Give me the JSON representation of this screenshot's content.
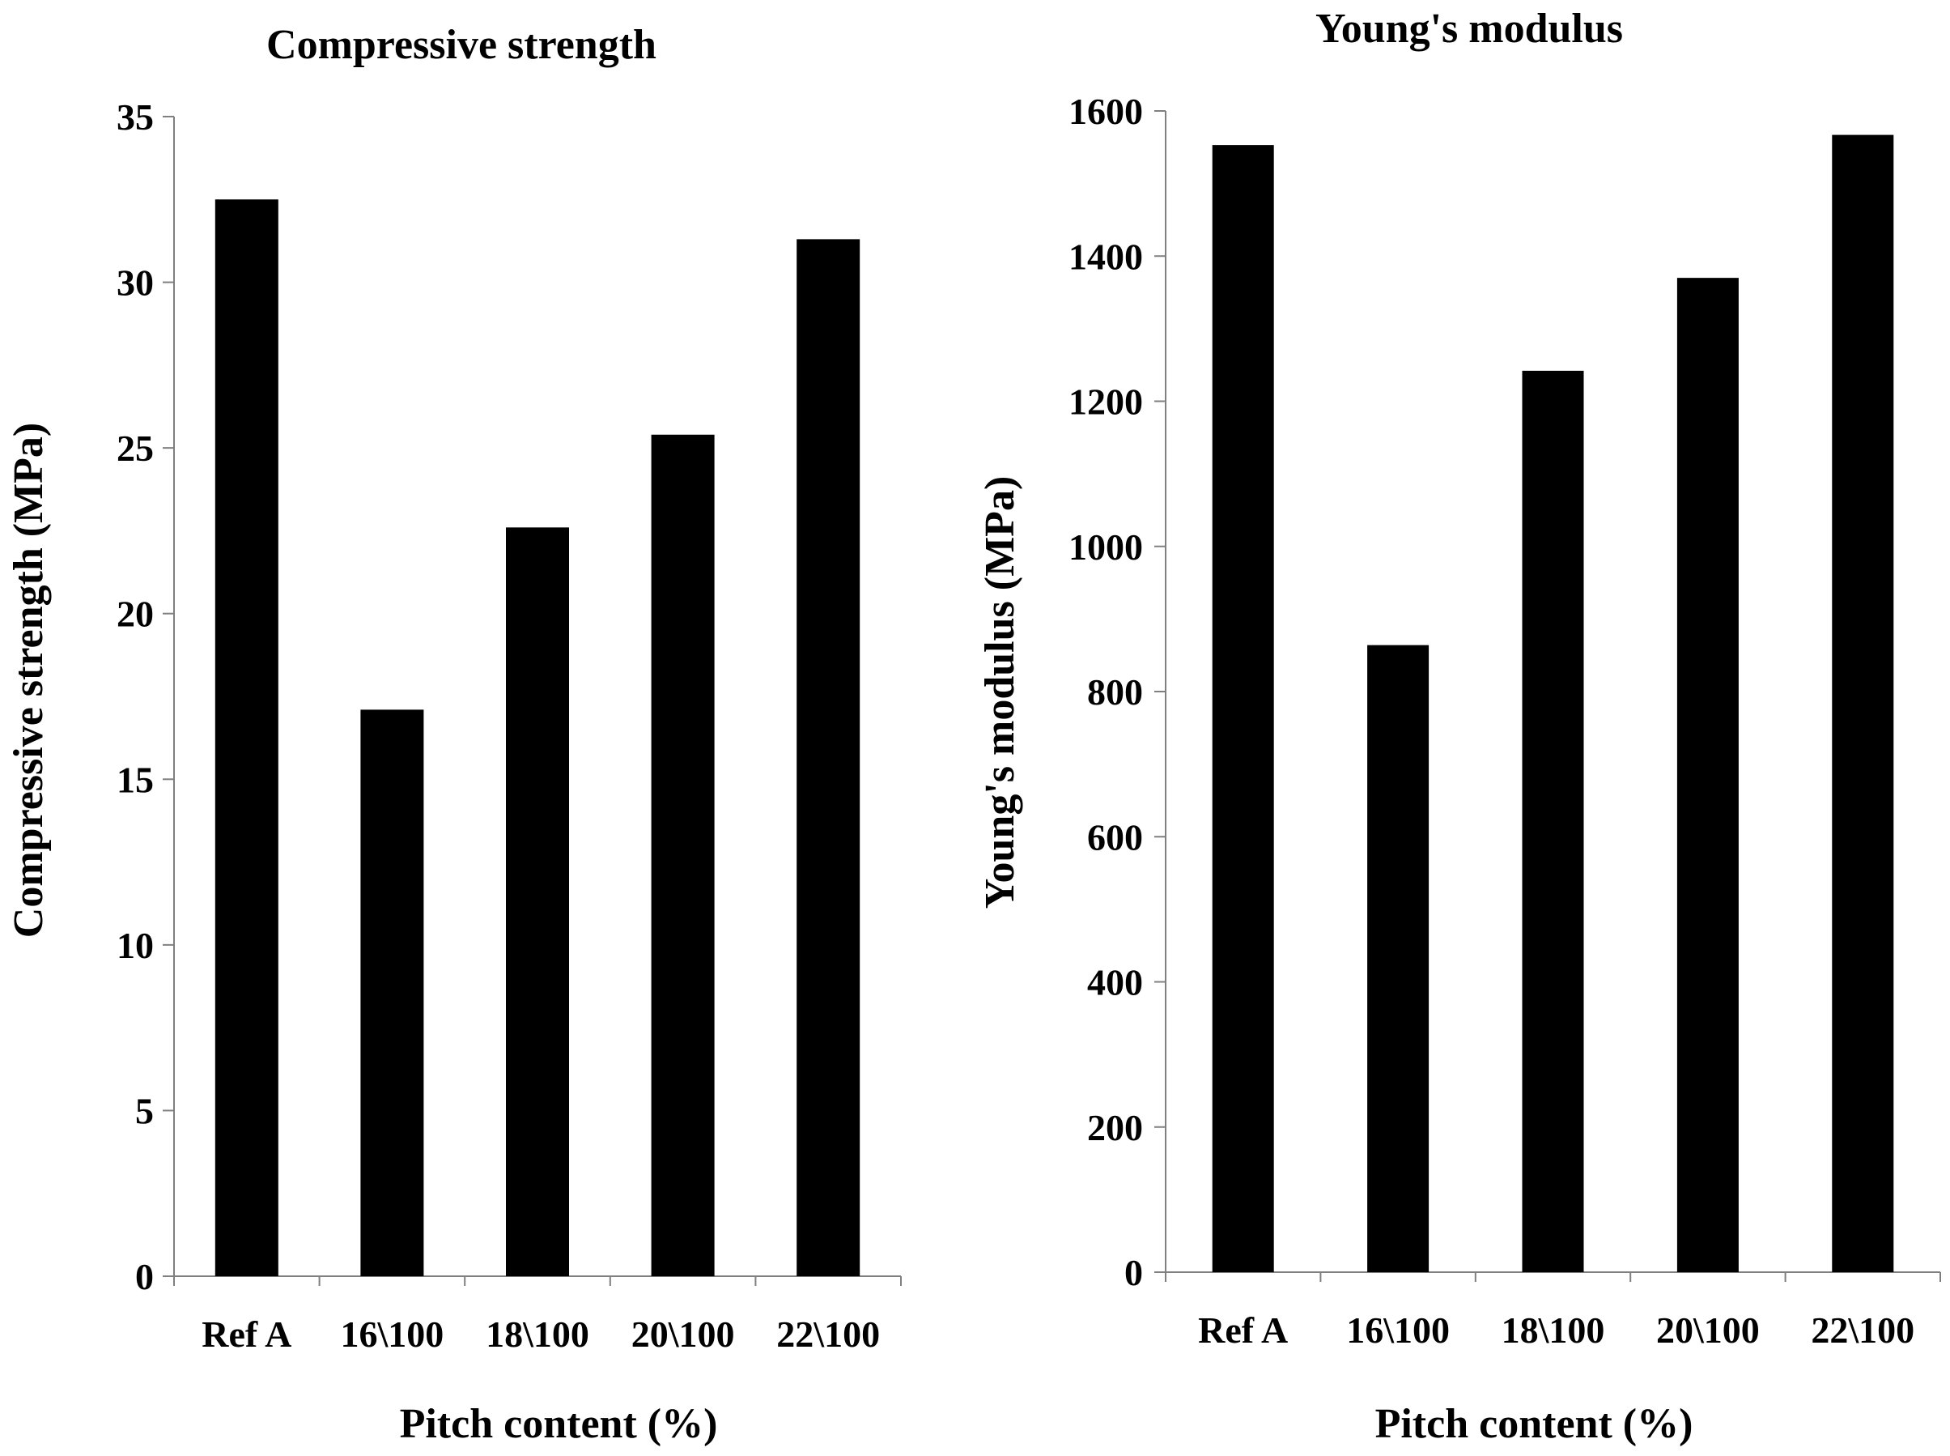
{
  "colors": {
    "bar": "#000000",
    "axis": "#7f7f7f",
    "background": "#ffffff"
  },
  "chart_data": [
    {
      "type": "bar",
      "title": "Compressive strength",
      "xlabel": "Pitch content (%)",
      "ylabel": "Compressive strength (MPa)",
      "categories": [
        "Ref A",
        "16\\100",
        "18\\100",
        "20\\100",
        "22\\100"
      ],
      "values": [
        32.5,
        17.1,
        22.6,
        25.4,
        31.3
      ],
      "ylim": [
        0,
        35
      ],
      "yticks": [
        0,
        5,
        10,
        15,
        20,
        25,
        30,
        35
      ],
      "grid": false,
      "legend": "none"
    },
    {
      "type": "bar",
      "title": "Young's modulus",
      "xlabel": "Pitch content (%)",
      "ylabel": "Young's modulus (MPa)",
      "categories": [
        "Ref A",
        "16\\100",
        "18\\100",
        "20\\100",
        "22\\100"
      ],
      "values": [
        1553,
        864,
        1242,
        1370,
        1567
      ],
      "ylim": [
        0,
        1600
      ],
      "yticks": [
        0,
        200,
        400,
        600,
        800,
        1000,
        1200,
        1400,
        1600
      ],
      "grid": false,
      "legend": "none"
    }
  ]
}
